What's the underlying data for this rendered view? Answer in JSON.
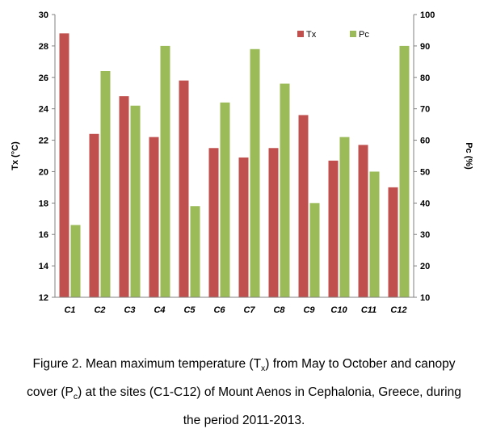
{
  "chart_data": {
    "type": "bar",
    "categories": [
      "C1",
      "C2",
      "C3",
      "C4",
      "C5",
      "C6",
      "C7",
      "C8",
      "C9",
      "C10",
      "C11",
      "C12"
    ],
    "series": [
      {
        "name": "Tx",
        "axis": "left",
        "color": "#c0504d",
        "values": [
          28.8,
          22.4,
          24.8,
          22.2,
          25.8,
          21.5,
          20.9,
          21.5,
          23.6,
          20.7,
          21.7,
          19.0
        ]
      },
      {
        "name": "Pc",
        "axis": "right",
        "color": "#9bbb59",
        "values": [
          33,
          82,
          71,
          90,
          39,
          72,
          89,
          78,
          40,
          61,
          50,
          90
        ]
      }
    ],
    "ylabel_left": "Tx  (°C)",
    "ylabel_right": "Pc  (%)",
    "ylim_left": [
      12,
      30
    ],
    "ylim_right": [
      10,
      100
    ],
    "yticks_left": [
      "12",
      "14",
      "16",
      "18",
      "20",
      "22",
      "24",
      "26",
      "28",
      "30"
    ],
    "yticks_right": [
      "10",
      "20",
      "30",
      "40",
      "50",
      "60",
      "70",
      "80",
      "90",
      "100"
    ],
    "grid": false,
    "legend_position": "top-right"
  },
  "caption": {
    "line1_a": "Figure 2. Mean maximum temperature (T",
    "line1_sub1": "x",
    "line1_b": ") from May to October and canopy",
    "line2_a": "cover (P",
    "line2_sub": "c",
    "line2_b": ") at the sites (C1-C12) of Mount Aenos in Cephalonia, Greece, during",
    "line3": "the period 2011-2013."
  }
}
